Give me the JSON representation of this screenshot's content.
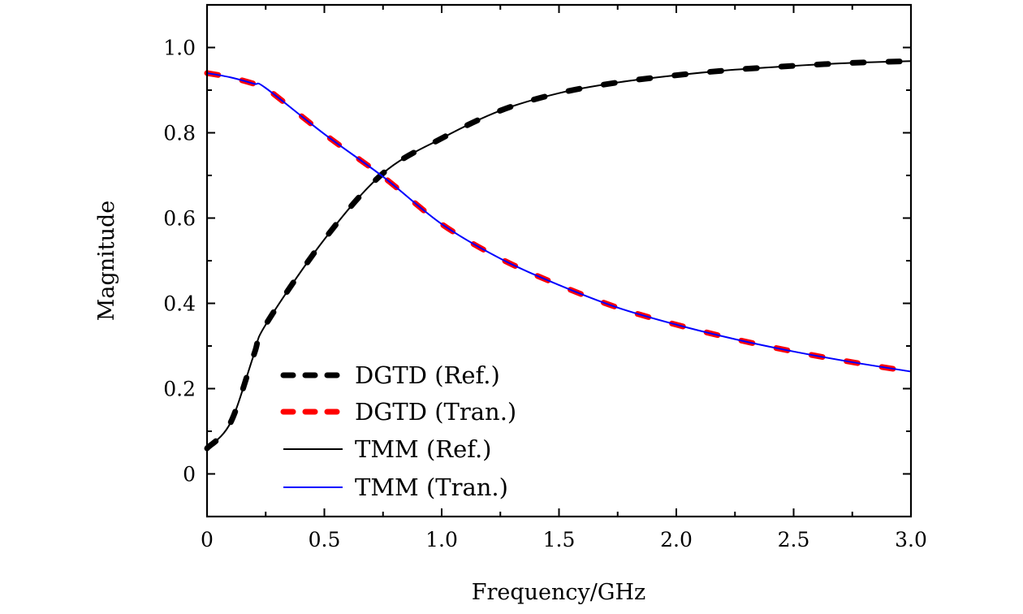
{
  "chart_data": {
    "type": "line",
    "title": "",
    "xlabel": "Frequency/GHz",
    "ylabel": "Magnitude",
    "xlim": [
      0,
      3.0
    ],
    "ylim": [
      -0.1,
      1.1
    ],
    "xticks": [
      "0",
      "0.5",
      "1.0",
      "1.5",
      "2.0",
      "2.5",
      "3.0"
    ],
    "xtick_values": [
      0,
      0.5,
      1.0,
      1.5,
      2.0,
      2.5,
      3.0
    ],
    "yticks": [
      "0",
      "0.2",
      "0.4",
      "0.6",
      "0.8",
      "1.0"
    ],
    "ytick_values": [
      0,
      0.2,
      0.4,
      0.6,
      0.8,
      1.0
    ],
    "grid": false,
    "legend_position": "bottom-left",
    "x": [
      0,
      0.1,
      0.2,
      0.25,
      0.5,
      0.75,
      1.0,
      1.25,
      1.5,
      1.75,
      2.0,
      2.25,
      2.5,
      2.75,
      3.0
    ],
    "series": [
      {
        "name": "DGTD (Ref.)",
        "color": "#000000",
        "style": "thick-dashed",
        "values": [
          0.06,
          0.12,
          0.28,
          0.35,
          0.55,
          0.705,
          0.787,
          0.852,
          0.893,
          0.918,
          0.935,
          0.948,
          0.957,
          0.964,
          0.968
        ]
      },
      {
        "name": "DGTD (Tran.)",
        "color": "#ff0000",
        "style": "thick-dashed",
        "values": [
          0.94,
          0.93,
          0.915,
          0.905,
          0.797,
          0.697,
          0.586,
          0.505,
          0.443,
          0.39,
          0.35,
          0.316,
          0.287,
          0.262,
          0.24
        ]
      },
      {
        "name": "TMM (Ref.)",
        "color": "#000000",
        "style": "solid",
        "values": [
          0.06,
          0.12,
          0.28,
          0.35,
          0.55,
          0.705,
          0.787,
          0.852,
          0.893,
          0.918,
          0.935,
          0.948,
          0.957,
          0.964,
          0.968
        ]
      },
      {
        "name": "TMM (Tran.)",
        "color": "#0000ff",
        "style": "solid",
        "values": [
          0.94,
          0.93,
          0.915,
          0.905,
          0.797,
          0.697,
          0.586,
          0.505,
          0.443,
          0.39,
          0.35,
          0.316,
          0.287,
          0.262,
          0.24
        ]
      }
    ]
  }
}
